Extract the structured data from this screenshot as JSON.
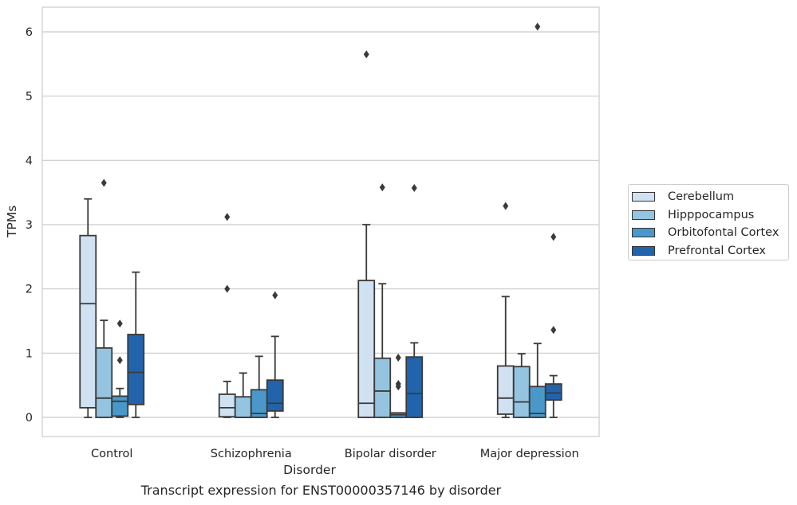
{
  "chart_data": {
    "type": "box",
    "title": "",
    "caption": "Transcript expression for ENST00000357146 by disorder",
    "xlabel": "Disorder",
    "ylabel": "TPMs",
    "ylim": [
      -0.3,
      6.4
    ],
    "yticks": [
      0,
      1,
      2,
      3,
      4,
      5,
      6
    ],
    "grid": true,
    "legend_position": "right",
    "categories": [
      "Control",
      "Schizophrenia",
      "Bipolar disorder",
      "Major depression"
    ],
    "series": [
      {
        "name": "Cerebellum",
        "color": "#d0e1f2",
        "boxes": [
          {
            "whisker_low": 0,
            "q1": 0.15,
            "median": 1.77,
            "q3": 2.83,
            "whisker_high": 3.4,
            "outliers": []
          },
          {
            "whisker_low": 0,
            "q1": 0.01,
            "median": 0.15,
            "q3": 0.36,
            "whisker_high": 0.56,
            "outliers": [
              2.0,
              3.12
            ]
          },
          {
            "whisker_low": 0,
            "q1": 0,
            "median": 0.22,
            "q3": 2.13,
            "whisker_high": 3.0,
            "outliers": [
              5.65
            ]
          },
          {
            "whisker_low": 0,
            "q1": 0.05,
            "median": 0.3,
            "q3": 0.8,
            "whisker_high": 1.88,
            "outliers": [
              3.29
            ]
          }
        ]
      },
      {
        "name": "Hipppocampus",
        "color": "#94c4df",
        "boxes": [
          {
            "whisker_low": 0,
            "q1": 0,
            "median": 0.3,
            "q3": 1.08,
            "whisker_high": 1.51,
            "outliers": [
              3.65
            ]
          },
          {
            "whisker_low": 0,
            "q1": 0,
            "median": 0,
            "q3": 0.32,
            "whisker_high": 0.69,
            "outliers": []
          },
          {
            "whisker_low": 0,
            "q1": 0,
            "median": 0.41,
            "q3": 0.92,
            "whisker_high": 2.08,
            "outliers": [
              3.58
            ]
          },
          {
            "whisker_low": 0,
            "q1": 0,
            "median": 0.24,
            "q3": 0.79,
            "whisker_high": 0.99,
            "outliers": []
          }
        ]
      },
      {
        "name": "Orbitofontal Cortex",
        "color": "#4a98c9",
        "boxes": [
          {
            "whisker_low": 0,
            "q1": 0.02,
            "median": 0.25,
            "q3": 0.33,
            "whisker_high": 0.45,
            "outliers": [
              0.89,
              1.46
            ]
          },
          {
            "whisker_low": 0,
            "q1": 0,
            "median": 0.06,
            "q3": 0.43,
            "whisker_high": 0.95,
            "outliers": []
          },
          {
            "whisker_low": 0,
            "q1": 0,
            "median": 0.04,
            "q3": 0.07,
            "whisker_high": 0.07,
            "outliers": [
              0.48,
              0.52,
              0.93
            ]
          },
          {
            "whisker_low": 0,
            "q1": 0,
            "median": 0.06,
            "q3": 0.48,
            "whisker_high": 1.15,
            "outliers": [
              6.08
            ]
          }
        ]
      },
      {
        "name": "Prefrontal Cortex",
        "color": "#2164ab",
        "boxes": [
          {
            "whisker_low": 0,
            "q1": 0.2,
            "median": 0.7,
            "q3": 1.29,
            "whisker_high": 2.26,
            "outliers": []
          },
          {
            "whisker_low": 0,
            "q1": 0.1,
            "median": 0.22,
            "q3": 0.58,
            "whisker_high": 1.26,
            "outliers": [
              1.9
            ]
          },
          {
            "whisker_low": 0,
            "q1": 0,
            "median": 0.37,
            "q3": 0.94,
            "whisker_high": 1.16,
            "outliers": [
              3.57
            ]
          },
          {
            "whisker_low": 0,
            "q1": 0.27,
            "median": 0.38,
            "q3": 0.52,
            "whisker_high": 0.65,
            "outliers": [
              1.36,
              2.81
            ]
          }
        ]
      }
    ]
  }
}
